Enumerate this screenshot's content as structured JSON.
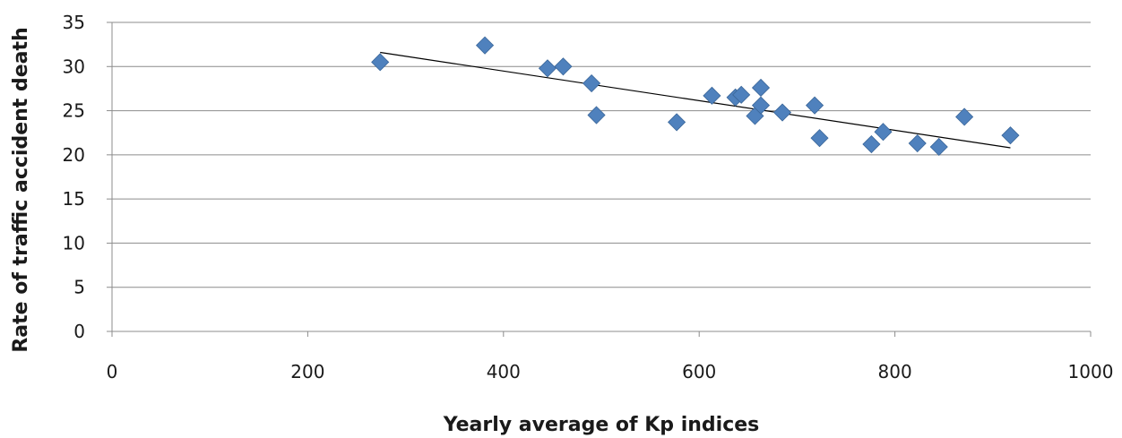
{
  "chart_data": {
    "type": "scatter",
    "title": "",
    "xlabel": "Yearly average of Kp indices",
    "ylabel": "Rate of traffic accident death",
    "xlim": [
      0,
      1000
    ],
    "ylim": [
      0,
      35
    ],
    "x_ticks": [
      0,
      200,
      400,
      600,
      800,
      1000
    ],
    "y_ticks": [
      0,
      5,
      10,
      15,
      20,
      25,
      30,
      35
    ],
    "grid": "horizontal",
    "legend": "none",
    "marker": "diamond",
    "colors": {
      "marker": "#4f81bd",
      "marker_edge": "#3a6699",
      "trendline": "#000000",
      "grid": "#8c8c8c",
      "axis": "#8c8c8c"
    },
    "series": [
      {
        "points": [
          [
            274,
            30.5
          ],
          [
            381,
            32.4
          ],
          [
            445,
            29.8
          ],
          [
            461,
            30.0
          ],
          [
            490,
            28.1
          ],
          [
            495,
            24.5
          ],
          [
            577,
            23.7
          ],
          [
            613,
            26.7
          ],
          [
            637,
            26.5
          ],
          [
            643,
            26.8
          ],
          [
            657,
            24.4
          ],
          [
            663,
            27.6
          ],
          [
            663,
            25.6
          ],
          [
            685,
            24.8
          ],
          [
            718,
            25.6
          ],
          [
            723,
            21.9
          ],
          [
            776,
            21.2
          ],
          [
            788,
            22.6
          ],
          [
            823,
            21.3
          ],
          [
            845,
            20.9
          ],
          [
            871,
            24.3
          ],
          [
            918,
            22.2
          ]
        ]
      }
    ],
    "trendline": {
      "type": "linear",
      "x": [
        274,
        918
      ],
      "y": [
        31.6,
        20.8
      ]
    }
  }
}
